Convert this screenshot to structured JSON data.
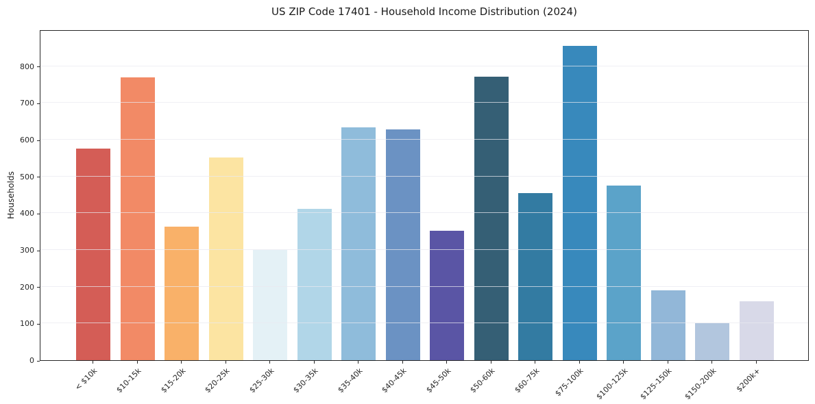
{
  "chart_data": {
    "type": "bar",
    "title": "US ZIP Code 17401 - Household Income Distribution (2024)",
    "xlabel": "",
    "ylabel": "Households",
    "categories": [
      "< $10k",
      "$10-15k",
      "$15-20k",
      "$20-25k",
      "$25-30k",
      "$30-35k",
      "$35-40k",
      "$40-45k",
      "$45-50k",
      "$50-60k",
      "$60-75k",
      "$75-100k",
      "$100-125k",
      "$125-150k",
      "$150-200k",
      "$200k+"
    ],
    "values": [
      575,
      770,
      363,
      551,
      300,
      411,
      634,
      628,
      352,
      772,
      455,
      855,
      475,
      190,
      100,
      160
    ],
    "bar_colors": [
      "#d45d56",
      "#f28a66",
      "#f9b169",
      "#fce4a2",
      "#e4f1f6",
      "#b1d6e8",
      "#8fbcdb",
      "#6b92c3",
      "#5a55a5",
      "#355f75",
      "#337ba2",
      "#3889bc",
      "#5ba3c9",
      "#92b7d8",
      "#b2c6de",
      "#d8d9e8"
    ],
    "ylim": [
      0,
      900
    ],
    "yticks": [
      0,
      100,
      200,
      300,
      400,
      500,
      600,
      700,
      800
    ],
    "grid": "horizontal",
    "legend": "none",
    "background": "#ffffff",
    "spine_color": "#262626",
    "grid_color": "#e9e9f0"
  }
}
